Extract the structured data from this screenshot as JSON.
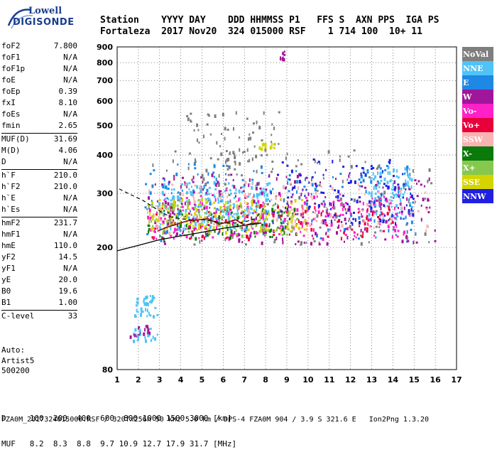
{
  "logo": {
    "line1": "Lowell",
    "line2": "DIGISONDE"
  },
  "header": {
    "line1": "Station    YYYY DAY    DDD HHMMSS P1   FFS S  AXN PPS  IGA PS",
    "line2": "Fortaleza  2017 Nov20  324 015000 RSF    1 714 100  10+ 11"
  },
  "params": [
    [
      {
        "k": "foF2",
        "v": "7.800"
      },
      {
        "k": "foF1",
        "v": "N/A"
      },
      {
        "k": "foF1p",
        "v": "N/A"
      },
      {
        "k": "foE",
        "v": "N/A"
      },
      {
        "k": "foEp",
        "v": "0.39"
      },
      {
        "k": "fxI",
        "v": "8.10"
      },
      {
        "k": "foEs",
        "v": "N/A"
      },
      {
        "k": "fmin",
        "v": "2.65"
      }
    ],
    [
      {
        "k": "MUF(D)",
        "v": "31.69"
      },
      {
        "k": "M(D)",
        "v": "4.06"
      },
      {
        "k": "D",
        "v": "N/A"
      }
    ],
    [
      {
        "k": "h`F",
        "v": "210.0"
      },
      {
        "k": "h`F2",
        "v": "210.0"
      },
      {
        "k": "h`E",
        "v": "N/A"
      },
      {
        "k": "h`Es",
        "v": "N/A"
      }
    ],
    [
      {
        "k": "hmF2",
        "v": "231.7"
      },
      {
        "k": "hmF1",
        "v": "N/A"
      },
      {
        "k": "hmE",
        "v": "110.0"
      },
      {
        "k": "yF2",
        "v": "14.5"
      },
      {
        "k": "yF1",
        "v": "N/A"
      },
      {
        "k": "yE",
        "v": "20.0"
      },
      {
        "k": "B0",
        "v": "19.6"
      },
      {
        "k": "B1",
        "v": "1.00"
      }
    ],
    [
      {
        "k": "C-level",
        "v": "33"
      }
    ]
  ],
  "auto": {
    "line1": "Auto:",
    "line2": "Artist5",
    "line3": "500200"
  },
  "d_row": "D     100  200  400  600  800 1000 1500 3000 [km]",
  "muf_row": "MUF   8.2  8.3  8.8  9.7 10.9 12.7 17.9 31.7 [MHz]",
  "footer": "FZA0M_2017324015000.RSF / 320fx256h 50 kHz 5.0 km / DPS-4 FZA0M 904 / 3.9 S 321.6 E   Ion2Png 1.3.20",
  "chart_data": {
    "type": "scatter",
    "title": "",
    "xlabel": "",
    "ylabel": "",
    "xlim": [
      1,
      17
    ],
    "ylim": [
      80,
      900
    ],
    "y_scale": "log",
    "x_ticks": [
      1,
      2,
      3,
      4,
      5,
      6,
      7,
      8,
      9,
      10,
      11,
      12,
      13,
      14,
      15,
      16,
      17
    ],
    "y_ticks": [
      80,
      200,
      300,
      400,
      500,
      600,
      700,
      800,
      900
    ],
    "legend_placement": "right",
    "legend": [
      {
        "name": "NoVal",
        "color": "#7f7f7f"
      },
      {
        "name": "NNE",
        "color": "#4fc3f7"
      },
      {
        "name": "E",
        "color": "#1e88e5"
      },
      {
        "name": "W",
        "color": "#a0169a"
      },
      {
        "name": "Vo-",
        "color": "#ff20c8"
      },
      {
        "name": "Vo+",
        "color": "#e8003a"
      },
      {
        "name": "SSW",
        "color": "#f9b3b3"
      },
      {
        "name": "X-",
        "color": "#0a7a0a"
      },
      {
        "name": "X+",
        "color": "#86c84e"
      },
      {
        "name": "SSE",
        "color": "#d4d400"
      },
      {
        "name": "NNW",
        "color": "#2020e0"
      }
    ],
    "regions": [
      {
        "color": "#7f7f7f",
        "x": [
          2.3,
          16.0
        ],
        "y": [
          205,
          420
        ],
        "n": 140
      },
      {
        "color": "#4fc3f7",
        "x": [
          2.9,
          8.2
        ],
        "y": [
          230,
          330
        ],
        "n": 260
      },
      {
        "color": "#4fc3f7",
        "x": [
          12.8,
          14.9
        ],
        "y": [
          250,
          370
        ],
        "n": 110
      },
      {
        "color": "#4fc3f7",
        "x": [
          1.8,
          2.9
        ],
        "y": [
          120,
          140
        ],
        "n": 40
      },
      {
        "color": "#1e88e5",
        "x": [
          2.2,
          15.2
        ],
        "y": [
          210,
          380
        ],
        "n": 180
      },
      {
        "color": "#a0169a",
        "x": [
          2.4,
          16.0
        ],
        "y": [
          205,
          350
        ],
        "n": 230
      },
      {
        "color": "#ff20c8",
        "x": [
          2.4,
          14.8
        ],
        "y": [
          215,
          300
        ],
        "n": 200
      },
      {
        "color": "#e8003a",
        "x": [
          2.4,
          14.2
        ],
        "y": [
          215,
          280
        ],
        "n": 110
      },
      {
        "color": "#f9b3b3",
        "x": [
          2.4,
          15.8
        ],
        "y": [
          225,
          330
        ],
        "n": 130
      },
      {
        "color": "#0a7a0a",
        "x": [
          2.4,
          9.5
        ],
        "y": [
          215,
          270
        ],
        "n": 70
      },
      {
        "color": "#86c84e",
        "x": [
          2.4,
          9.5
        ],
        "y": [
          220,
          280
        ],
        "n": 90
      },
      {
        "color": "#d4d400",
        "x": [
          2.4,
          10.0
        ],
        "y": [
          225,
          290
        ],
        "n": 140
      },
      {
        "color": "#2020e0",
        "x": [
          8.2,
          15.0
        ],
        "y": [
          240,
          390
        ],
        "n": 120
      },
      {
        "color": "#7f7f7f",
        "x": [
          4.2,
          8.6
        ],
        "y": [
          320,
          560
        ],
        "n": 80
      },
      {
        "color": "#d4d400",
        "x": [
          7.6,
          8.6
        ],
        "y": [
          420,
          440
        ],
        "n": 15
      },
      {
        "color": "#a0169a",
        "x": [
          8.6,
          8.9
        ],
        "y": [
          820,
          880
        ],
        "n": 10
      },
      {
        "color": "#a0169a",
        "x": [
          1.5,
          2.5
        ],
        "y": [
          103,
          112
        ],
        "n": 18
      },
      {
        "color": "#4fc3f7",
        "x": [
          1.7,
          2.9
        ],
        "y": [
          100,
          110
        ],
        "n": 22
      }
    ],
    "solid_line": {
      "x": [
        1.0,
        2.0,
        3.0,
        4.0,
        5.0,
        6.0,
        7.0,
        7.8
      ],
      "y": [
        195,
        203,
        212,
        218,
        224,
        231,
        236,
        240
      ]
    },
    "dashed_line": {
      "x": [
        1.1,
        1.6,
        2.2,
        2.8,
        3.2,
        3.5,
        4.0,
        4.5,
        5.0,
        5.5,
        6.0,
        6.5,
        7.0,
        7.5,
        7.8
      ],
      "y": [
        310,
        298,
        285,
        268,
        258,
        252,
        248,
        246,
        246,
        244,
        240,
        240,
        242,
        248,
        262
      ]
    },
    "trace_line": {
      "x": [
        2.9,
        3.3,
        3.8,
        4.3,
        4.8,
        5.3,
        5.8,
        6.2,
        6.6,
        7.0,
        7.4,
        7.8
      ],
      "y": [
        226,
        232,
        238,
        244,
        246,
        248,
        238,
        242,
        246,
        236,
        240,
        240
      ]
    }
  }
}
